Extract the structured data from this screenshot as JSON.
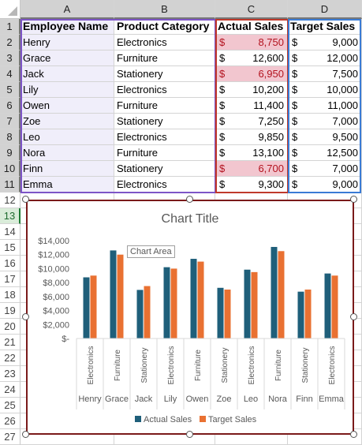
{
  "columns": [
    "A",
    "B",
    "C",
    "D"
  ],
  "rows": [
    "1",
    "2",
    "3",
    "4",
    "5",
    "6",
    "7",
    "8",
    "9",
    "10",
    "11",
    "12",
    "13",
    "14",
    "15",
    "16",
    "17",
    "18",
    "19",
    "20",
    "21",
    "22",
    "23",
    "24",
    "25",
    "26",
    "27"
  ],
  "table": {
    "headers": [
      "Employee Name",
      "Product Category",
      "Actual Sales",
      "Target Sales"
    ],
    "currency": "$",
    "records": [
      {
        "name": "Henry",
        "category": "Electronics",
        "actual": "8,750",
        "target": "9,000"
      },
      {
        "name": "Grace",
        "category": "Furniture",
        "actual": "12,600",
        "target": "12,000"
      },
      {
        "name": "Jack",
        "category": "Stationery",
        "actual": "6,950",
        "target": "7,500"
      },
      {
        "name": "Lily",
        "category": "Electronics",
        "actual": "10,200",
        "target": "10,000"
      },
      {
        "name": "Owen",
        "category": "Furniture",
        "actual": "11,400",
        "target": "11,000"
      },
      {
        "name": "Zoe",
        "category": "Stationery",
        "actual": "7,250",
        "target": "7,000"
      },
      {
        "name": "Leo",
        "category": "Electronics",
        "actual": "9,850",
        "target": "9,500"
      },
      {
        "name": "Nora",
        "category": "Furniture",
        "actual": "13,100",
        "target": "12,500"
      },
      {
        "name": "Finn",
        "category": "Stationery",
        "actual": "6,700",
        "target": "7,000"
      },
      {
        "name": "Emma",
        "category": "Electronics",
        "actual": "9,300",
        "target": "9,000"
      }
    ]
  },
  "chart": {
    "title": "Chart Title",
    "tooltip": "Chart Area"
  },
  "chart_data": {
    "type": "bar",
    "title": "Chart Title",
    "categories": [
      [
        "Henry",
        "Electronics"
      ],
      [
        "Grace",
        "Furniture"
      ],
      [
        "Jack",
        "Stationery"
      ],
      [
        "Lily",
        "Electronics"
      ],
      [
        "Owen",
        "Furniture"
      ],
      [
        "Zoe",
        "Stationery"
      ],
      [
        "Leo",
        "Electronics"
      ],
      [
        "Nora",
        "Furniture"
      ],
      [
        "Finn",
        "Stationery"
      ],
      [
        "Emma",
        "Electronics"
      ]
    ],
    "series": [
      {
        "name": "Actual Sales",
        "color": "#1f5f7a",
        "values": [
          8750,
          12600,
          6950,
          10200,
          11400,
          7250,
          9850,
          13100,
          6700,
          9300
        ]
      },
      {
        "name": "Target Sales",
        "color": "#e97132",
        "values": [
          9000,
          12000,
          7500,
          10000,
          11000,
          7000,
          9500,
          12500,
          7000,
          9000
        ]
      }
    ],
    "ylim": [
      0,
      14000
    ],
    "yticks": [
      0,
      2000,
      4000,
      6000,
      8000,
      10000,
      12000,
      14000
    ],
    "ytick_labels": [
      "$-",
      "$2,000",
      "$4,000",
      "$6,000",
      "$8,000",
      "$10,000",
      "$12,000",
      "$14,000"
    ],
    "legend": "bottom",
    "grid": false
  }
}
